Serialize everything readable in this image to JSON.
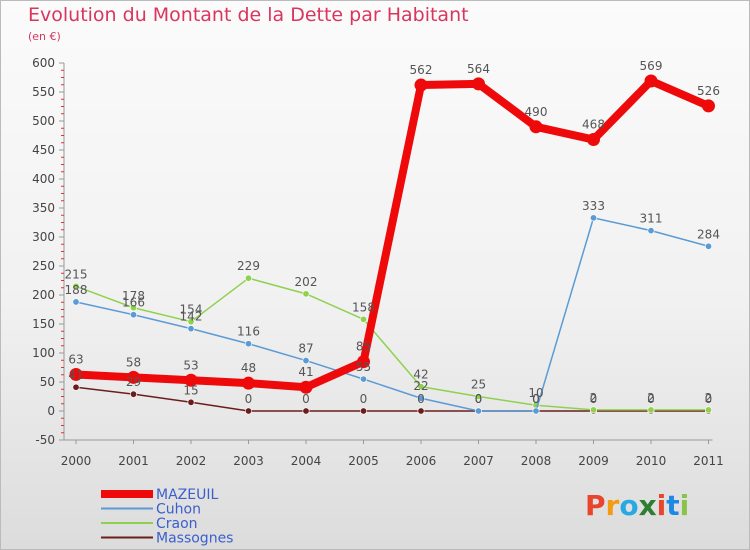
{
  "title": "Evolution du Montant de la Dette par Habitant",
  "subtitle": "(en €)",
  "logo": {
    "text": "Proxiti",
    "colors": [
      "#e8452c",
      "#f39c12",
      "#27a9e1",
      "#2e7d32",
      "#e8452c",
      "#1e88e5",
      "#8bc34a"
    ]
  },
  "chart_data": {
    "type": "line",
    "title": "Evolution du Montant de la Dette par Habitant",
    "subtitle": "(en €)",
    "x": [
      "2000",
      "2001",
      "2002",
      "2003",
      "2004",
      "2005",
      "2006",
      "2007",
      "2008",
      "2009",
      "2010",
      "2011"
    ],
    "ylim": [
      -50,
      600
    ],
    "yticks": [
      -50,
      0,
      50,
      100,
      150,
      200,
      250,
      300,
      350,
      400,
      450,
      500,
      550,
      600
    ],
    "grid": false,
    "legend_position": "bottom-left",
    "series": [
      {
        "name": "Massognes",
        "color": "#6b1d1d",
        "values": [
          41,
          29,
          15,
          0,
          0,
          0,
          0,
          0,
          0,
          0,
          0,
          0
        ],
        "labels": [
          "41",
          "29",
          "15",
          "0",
          "0",
          "0",
          "0",
          "0",
          "0",
          "0",
          "0",
          "0"
        ]
      },
      {
        "name": "Craon",
        "color": "#8fd14f",
        "values": [
          215,
          178,
          154,
          229,
          202,
          158,
          42,
          25,
          10,
          2,
          2,
          2
        ],
        "labels": [
          "215",
          "178",
          "154",
          "229",
          "202",
          "158",
          "42",
          "25",
          "10",
          "2",
          "2",
          "2"
        ]
      },
      {
        "name": "Cuhon",
        "color": "#5b9bd5",
        "values": [
          188,
          166,
          142,
          116,
          87,
          55,
          22,
          0,
          0,
          333,
          311,
          284
        ],
        "labels": [
          "188",
          "166",
          "142",
          "116",
          "87",
          "55",
          "22",
          "0",
          "0",
          "333",
          "311",
          "284"
        ]
      },
      {
        "name": "MAZEUIL",
        "color": "#ee0a0a",
        "values": [
          63,
          58,
          53,
          48,
          41,
          85,
          562,
          564,
          490,
          468,
          569,
          526
        ],
        "labels": [
          "63",
          "58",
          "53",
          "48",
          "41",
          "85",
          "562",
          "564",
          "490",
          "468",
          "569",
          "526"
        ]
      }
    ]
  }
}
